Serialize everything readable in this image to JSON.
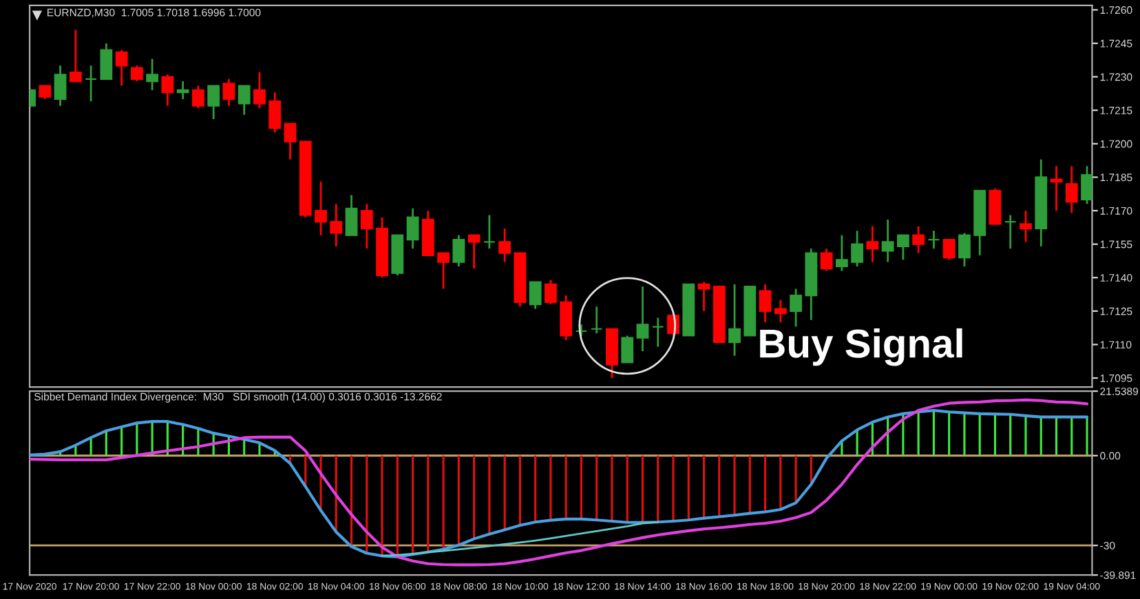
{
  "chart_data": [
    {
      "type": "candlestick",
      "title": "EURNZD,M30  1.7005 1.7018 1.6996 1.7000",
      "annotations": [
        "Buy Signal"
      ],
      "tick_labels": "y",
      "x": [
        "2020-11-17T18:00",
        "2020-11-17T18:30",
        "2020-11-17T19:00",
        "2020-11-17T19:30",
        "2020-11-17T20:00",
        "2020-11-17T20:30",
        "2020-11-17T21:00",
        "2020-11-17T21:30",
        "2020-11-17T22:00",
        "2020-11-17T22:30",
        "2020-11-17T23:00",
        "2020-11-17T23:30",
        "2020-11-18T00:00",
        "2020-11-18T00:30",
        "2020-11-18T01:00",
        "2020-11-18T01:30",
        "2020-11-18T02:00",
        "2020-11-18T02:30",
        "2020-11-18T03:00",
        "2020-11-18T03:30",
        "2020-11-18T04:00",
        "2020-11-18T04:30",
        "2020-11-18T05:00",
        "2020-11-18T05:30",
        "2020-11-18T06:00",
        "2020-11-18T06:30",
        "2020-11-18T07:00",
        "2020-11-18T07:30",
        "2020-11-18T08:00",
        "2020-11-18T08:30",
        "2020-11-18T09:00",
        "2020-11-18T09:30",
        "2020-11-18T10:00",
        "2020-11-18T10:30",
        "2020-11-18T11:00",
        "2020-11-18T11:30",
        "2020-11-18T12:00",
        "2020-11-18T12:30",
        "2020-11-18T13:00",
        "2020-11-18T13:30",
        "2020-11-18T14:00",
        "2020-11-18T14:30",
        "2020-11-18T15:00",
        "2020-11-18T15:30",
        "2020-11-18T16:00",
        "2020-11-18T16:30",
        "2020-11-18T17:00",
        "2020-11-18T17:30",
        "2020-11-18T18:00",
        "2020-11-18T18:30",
        "2020-11-18T19:00",
        "2020-11-18T19:30",
        "2020-11-18T20:00",
        "2020-11-18T20:30",
        "2020-11-18T21:00",
        "2020-11-18T21:30",
        "2020-11-18T22:00",
        "2020-11-18T22:30",
        "2020-11-18T23:00",
        "2020-11-18T23:30",
        "2020-11-19T00:00",
        "2020-11-19T00:30",
        "2020-11-19T01:00",
        "2020-11-19T01:30",
        "2020-11-19T02:00",
        "2020-11-19T02:30",
        "2020-11-19T03:00",
        "2020-11-19T03:30",
        "2020-11-19T04:00",
        "2020-11-19T04:30"
      ],
      "ohlc": [
        [
          1.7217,
          1.7225,
          1.7216,
          1.7224
        ],
        [
          1.7226,
          1.7226,
          1.722,
          1.7221
        ],
        [
          1.722,
          1.7235,
          1.7217,
          1.7231
        ],
        [
          1.7232,
          1.7251,
          1.7228,
          1.7228
        ],
        [
          1.7229,
          1.7235,
          1.7219,
          1.7229
        ],
        [
          1.7229,
          1.7245,
          1.7229,
          1.7242
        ],
        [
          1.7241,
          1.7242,
          1.7226,
          1.7235
        ],
        [
          1.7234,
          1.7235,
          1.7228,
          1.7229
        ],
        [
          1.7228,
          1.7238,
          1.7224,
          1.7231
        ],
        [
          1.723,
          1.7231,
          1.7217,
          1.7223
        ],
        [
          1.7223,
          1.7228,
          1.722,
          1.7224
        ],
        [
          1.7224,
          1.7226,
          1.7216,
          1.7217
        ],
        [
          1.7217,
          1.7226,
          1.7211,
          1.7226
        ],
        [
          1.7227,
          1.7229,
          1.7217,
          1.722
        ],
        [
          1.7218,
          1.7226,
          1.7213,
          1.7226
        ],
        [
          1.7224,
          1.7232,
          1.7216,
          1.7218
        ],
        [
          1.7219,
          1.7223,
          1.7205,
          1.7207
        ],
        [
          1.7209,
          1.7209,
          1.7193,
          1.7201
        ],
        [
          1.7201,
          1.7201,
          1.7167,
          1.7168
        ],
        [
          1.717,
          1.7183,
          1.7159,
          1.7165
        ],
        [
          1.7165,
          1.7173,
          1.7154,
          1.716
        ],
        [
          1.7159,
          1.7177,
          1.7159,
          1.7171
        ],
        [
          1.717,
          1.7173,
          1.7153,
          1.7162
        ],
        [
          1.7162,
          1.7167,
          1.714,
          1.7141
        ],
        [
          1.7142,
          1.7159,
          1.7141,
          1.7159
        ],
        [
          1.7157,
          1.7171,
          1.7153,
          1.7167
        ],
        [
          1.7166,
          1.717,
          1.715,
          1.715
        ],
        [
          1.7151,
          1.7151,
          1.7135,
          1.7147
        ],
        [
          1.7147,
          1.7159,
          1.7145,
          1.7157
        ],
        [
          1.7159,
          1.7159,
          1.7144,
          1.7156
        ],
        [
          1.7156,
          1.7168,
          1.7153,
          1.7156
        ],
        [
          1.7156,
          1.7162,
          1.7147,
          1.7151
        ],
        [
          1.7151,
          1.7151,
          1.7127,
          1.7129
        ],
        [
          1.7128,
          1.7138,
          1.7126,
          1.7138
        ],
        [
          1.7137,
          1.7139,
          1.7128,
          1.7129
        ],
        [
          1.7129,
          1.7132,
          1.7112,
          1.7114
        ],
        [
          1.7116,
          1.7119,
          1.7114,
          1.7116
        ],
        [
          1.7117,
          1.7127,
          1.7115,
          1.7117
        ],
        [
          1.7117,
          1.7117,
          1.7095,
          1.7101
        ],
        [
          1.7102,
          1.7114,
          1.7102,
          1.7113
        ],
        [
          1.7113,
          1.7136,
          1.7107,
          1.7119
        ],
        [
          1.7118,
          1.7122,
          1.7109,
          1.7118
        ],
        [
          1.7123,
          1.7124,
          1.7114,
          1.7115
        ],
        [
          1.7114,
          1.7137,
          1.7114,
          1.7137
        ],
        [
          1.7137,
          1.7138,
          1.7125,
          1.7135
        ],
        [
          1.7136,
          1.7136,
          1.7111,
          1.7111
        ],
        [
          1.7111,
          1.7137,
          1.7105,
          1.7117
        ],
        [
          1.7114,
          1.7136,
          1.7114,
          1.7136
        ],
        [
          1.7134,
          1.7137,
          1.712,
          1.7125
        ],
        [
          1.7126,
          1.713,
          1.712,
          1.7124
        ],
        [
          1.7125,
          1.7135,
          1.7118,
          1.7132
        ],
        [
          1.7132,
          1.7153,
          1.7121,
          1.7151
        ],
        [
          1.7151,
          1.7153,
          1.7143,
          1.7144
        ],
        [
          1.7145,
          1.7159,
          1.7143,
          1.7148
        ],
        [
          1.7147,
          1.7161,
          1.7145,
          1.7155
        ],
        [
          1.7156,
          1.7163,
          1.7147,
          1.7153
        ],
        [
          1.7152,
          1.7166,
          1.7147,
          1.7156
        ],
        [
          1.7154,
          1.7159,
          1.7148,
          1.7159
        ],
        [
          1.7159,
          1.7163,
          1.7151,
          1.7155
        ],
        [
          1.7157,
          1.7161,
          1.7153,
          1.7157
        ],
        [
          1.7157,
          1.7157,
          1.7148,
          1.7149
        ],
        [
          1.7149,
          1.716,
          1.7145,
          1.7159
        ],
        [
          1.7159,
          1.7179,
          1.715,
          1.7179
        ],
        [
          1.7179,
          1.718,
          1.7164,
          1.7164
        ],
        [
          1.7165,
          1.7168,
          1.7153,
          1.7165
        ],
        [
          1.7164,
          1.717,
          1.7156,
          1.7162
        ],
        [
          1.7162,
          1.7193,
          1.7154,
          1.7185
        ],
        [
          1.7184,
          1.719,
          1.717,
          1.7183
        ],
        [
          1.7182,
          1.719,
          1.7169,
          1.7174
        ],
        [
          1.7175,
          1.719,
          1.7173,
          1.7186
        ]
      ],
      "colors": [
        "#2f9e3a",
        "#ff0000",
        "#2f9e3a",
        "#ff0000",
        "#2f9e3a",
        "#2f9e3a",
        "#ff0000",
        "#ff0000",
        "#2f9e3a",
        "#ff0000",
        "#2f9e3a",
        "#ff0000",
        "#2f9e3a",
        "#ff0000",
        "#2f9e3a",
        "#ff0000",
        "#ff0000",
        "#ff0000",
        "#ff0000",
        "#ff0000",
        "#ff0000",
        "#2f9e3a",
        "#ff0000",
        "#ff0000",
        "#2f9e3a",
        "#2f9e3a",
        "#ff0000",
        "#ff0000",
        "#2f9e3a",
        "#ff0000",
        "#2f9e3a",
        "#ff0000",
        "#ff0000",
        "#2f9e3a",
        "#ff0000",
        "#ff0000",
        "#2f9e3a",
        "#2f9e3a",
        "#ff0000",
        "#2f9e3a",
        "#2f9e3a",
        "#2f9e3a",
        "#ff0000",
        "#2f9e3a",
        "#ff0000",
        "#ff0000",
        "#2f9e3a",
        "#2f9e3a",
        "#ff0000",
        "#ff0000",
        "#2f9e3a",
        "#2f9e3a",
        "#ff0000",
        "#2f9e3a",
        "#2f9e3a",
        "#ff0000",
        "#2f9e3a",
        "#2f9e3a",
        "#ff0000",
        "#2f9e3a",
        "#ff0000",
        "#2f9e3a",
        "#2f9e3a",
        "#ff0000",
        "#2f9e3a",
        "#ff0000",
        "#2f9e3a",
        "#ff0000",
        "#ff0000",
        "#2f9e3a"
      ],
      "xlim": [
        "2020-11-17T18:00",
        "2020-11-19T04:40"
      ],
      "ylim": [
        1.7091,
        1.7262
      ],
      "yticks": [
        1.7095,
        {
          "value": 1.711,
          "label": "1.7110"
        },
        1.7125,
        {
          "value": 1.714,
          "label": "1.7140"
        },
        1.7155,
        {
          "value": 1.717,
          "label": "1.7170"
        },
        1.7185,
        {
          "value": 1.72,
          "label": "1.7200"
        },
        1.7215,
        {
          "value": 1.723,
          "label": "1.7230"
        },
        1.7245,
        {
          "value": 1.726,
          "label": "1.7260"
        }
      ]
    },
    {
      "type": "bar",
      "title": "Sibbet Demand Index Divergence:  M30   SDI smooth (14.00) 0.3016 0.3016 -13.2662",
      "x": [
        "2020-11-17T18:00",
        "2020-11-17T18:30",
        "2020-11-17T19:00",
        "2020-11-17T19:30",
        "2020-11-17T20:00",
        "2020-11-17T20:30",
        "2020-11-17T21:00",
        "2020-11-17T21:30",
        "2020-11-17T22:00",
        "2020-11-17T22:30",
        "2020-11-17T23:00",
        "2020-11-17T23:30",
        "2020-11-18T00:00",
        "2020-11-18T00:30",
        "2020-11-18T01:00",
        "2020-11-18T01:30",
        "2020-11-18T02:00",
        "2020-11-18T02:30",
        "2020-11-18T03:00",
        "2020-11-18T03:30",
        "2020-11-18T04:00",
        "2020-11-18T04:30",
        "2020-11-18T05:00",
        "2020-11-18T05:30",
        "2020-11-18T06:00",
        "2020-11-18T06:30",
        "2020-11-18T07:00",
        "2020-11-18T07:30",
        "2020-11-18T08:00",
        "2020-11-18T08:30",
        "2020-11-18T09:00",
        "2020-11-18T09:30",
        "2020-11-18T10:00",
        "2020-11-18T10:30",
        "2020-11-18T11:00",
        "2020-11-18T11:30",
        "2020-11-18T12:00",
        "2020-11-18T12:30",
        "2020-11-18T13:00",
        "2020-11-18T13:30",
        "2020-11-18T14:00",
        "2020-11-18T14:30",
        "2020-11-18T15:00",
        "2020-11-18T15:30",
        "2020-11-18T16:00",
        "2020-11-18T16:30",
        "2020-11-18T17:00",
        "2020-11-18T17:30",
        "2020-11-18T18:00",
        "2020-11-18T18:30",
        "2020-11-18T19:00",
        "2020-11-18T19:30",
        "2020-11-18T20:00",
        "2020-11-18T20:30",
        "2020-11-18T21:00",
        "2020-11-18T21:30",
        "2020-11-18T22:00",
        "2020-11-18T22:30",
        "2020-11-18T23:00",
        "2020-11-18T23:30",
        "2020-11-19T00:00",
        "2020-11-19T00:30",
        "2020-11-19T01:00",
        "2020-11-19T01:30",
        "2020-11-19T02:00",
        "2020-11-19T02:30",
        "2020-11-19T03:00",
        "2020-11-19T03:30",
        "2020-11-19T04:00",
        "2020-11-19T04:30"
      ],
      "series": [
        {
          "type": "bar",
          "values": [
            0.2,
            null,
            1.3,
            3.5,
            6,
            8.3,
            9.6,
            10.9,
            11.4,
            11.4,
            10.4,
            9.1,
            7.5,
            6.5,
            5.4,
            4.3,
            1.7,
            -2.6,
            -10.3,
            -18.3,
            -25.5,
            -30.4,
            -32.6,
            -33.5,
            -33.8,
            -33,
            -32.2,
            -31.3,
            -29.9,
            -27.8,
            -26.2,
            -24.8,
            -23.3,
            -22.2,
            -21.6,
            -21.2,
            -21.2,
            -21.5,
            -21.9,
            -22.3,
            -22.3,
            -22.2,
            -21.9,
            -21.5,
            -20.9,
            -20.4,
            -19.9,
            -19.3,
            -18.8,
            -18,
            -15.8,
            -9.6,
            null,
            4.9,
            8.6,
            11.2,
            12.9,
            14,
            14.6,
            15.1,
            14.6,
            14.3,
            14,
            13.9,
            13.8,
            13.3,
            12.9,
            12.9,
            12.9,
            12.9
          ],
          "colors": [
            "#3ee83e",
            "#3ee83e",
            "#3ee83e",
            "#3ee83e",
            "#3ee83e",
            "#3ee83e",
            "#3ee83e",
            "#3ee83e",
            "#3ee83e",
            "#3ee83e",
            "#3ee83e",
            "#3ee83e",
            "#3ee83e",
            "#3ee83e",
            "#3ee83e",
            "#3ee83e",
            "#3ee83e",
            "#e01010",
            "#e01010",
            "#e01010",
            "#e01010",
            "#e01010",
            "#e01010",
            "#e01010",
            "#e01010",
            "#e01010",
            "#e01010",
            "#e01010",
            "#e01010",
            "#e01010",
            "#e01010",
            "#e01010",
            "#e01010",
            "#e01010",
            "#e01010",
            "#e01010",
            "#e01010",
            "#e01010",
            "#e01010",
            "#e01010",
            "#e01010",
            "#e01010",
            "#e01010",
            "#e01010",
            "#e01010",
            "#e01010",
            "#e01010",
            "#e01010",
            "#e01010",
            "#e01010",
            "#e01010",
            "#e01010",
            "#e01010",
            "#3ee83e",
            "#3ee83e",
            "#3ee83e",
            "#3ee83e",
            "#3ee83e",
            "#3ee83e",
            "#3ee83e",
            "#3ee83e",
            "#3ee83e",
            "#3ee83e",
            "#3ee83e",
            "#3ee83e",
            "#3ee83e",
            "#3ee83e",
            "#3ee83e",
            "#3ee83e",
            "#3ee83e"
          ]
        },
        {
          "type": "line",
          "color": "#5fc8c8",
          "values": [
            null,
            null,
            null,
            null,
            null,
            null,
            null,
            null,
            null,
            null,
            null,
            null,
            null,
            null,
            null,
            null,
            null,
            null,
            null,
            null,
            null,
            null,
            null,
            -33.5,
            -33.2,
            -32.8,
            -32.3,
            -31.8,
            -31.3,
            -30.8,
            -30.2,
            -29.6,
            -29.0,
            -28.4,
            -27.6,
            -26.8,
            -26.0,
            -25.2,
            -24.4,
            -23.6,
            -22.6,
            -22.2,
            null,
            null,
            null,
            null,
            null,
            null,
            null,
            null,
            null,
            null,
            null,
            null,
            null,
            null,
            null,
            null,
            null,
            null,
            null,
            null,
            null,
            null,
            null,
            null,
            null,
            null,
            null,
            null
          ]
        },
        {
          "type": "line",
          "color": "#4a9fe0",
          "values": [
            0.2,
            0.5,
            1.3,
            3.5,
            6,
            8.3,
            9.6,
            10.9,
            11.4,
            11.4,
            10.4,
            9.1,
            7.5,
            6.5,
            5.4,
            4.3,
            1.7,
            -2.6,
            -10.3,
            -18.3,
            -25.5,
            -30.4,
            -32.6,
            -33.5,
            -33.8,
            -33,
            -32.2,
            -31.3,
            -29.9,
            -27.8,
            -26.2,
            -24.8,
            -23.3,
            -22.2,
            -21.6,
            -21.2,
            -21.2,
            -21.5,
            -21.9,
            -22.3,
            -22.3,
            -22.2,
            -21.9,
            -21.5,
            -20.9,
            -20.4,
            -19.9,
            -19.3,
            -18.8,
            -18,
            -15.8,
            -9.6,
            -0.9,
            4.9,
            8.6,
            11.2,
            12.9,
            14,
            14.6,
            15.1,
            14.6,
            14.3,
            14,
            13.9,
            13.8,
            13.3,
            12.9,
            12.9,
            12.9,
            12.9
          ]
        },
        {
          "type": "line",
          "color": "#e040e0",
          "values": [
            -1.2,
            -1.3,
            -1.4,
            -1.4,
            -1.4,
            -1.4,
            -0.7,
            0.1,
            0.9,
            1.6,
            2.3,
            3,
            4,
            4.9,
            6,
            6.2,
            6.2,
            6.2,
            1.6,
            -6,
            -13.2,
            -19.7,
            -25.5,
            -30.6,
            -33.8,
            -35.2,
            -36.1,
            -36.4,
            -36.5,
            -36.5,
            -36.4,
            -36.1,
            -35.4,
            -34.5,
            -33.5,
            -32.5,
            -31.7,
            -30.6,
            -29.4,
            -28.4,
            -27.4,
            -26.5,
            -25.8,
            -25.1,
            -24.5,
            -24.1,
            -23.6,
            -23,
            -22.6,
            -21.9,
            -20.7,
            -19,
            -14.9,
            -9.6,
            -3,
            2.8,
            7.8,
            12.2,
            15.1,
            16.5,
            17.5,
            17.8,
            17.9,
            18.3,
            18.4,
            18.6,
            18.4,
            17.9,
            17.8,
            17.3
          ]
        }
      ],
      "ref_lines": [
        {
          "axis": "y",
          "value": 0,
          "color": "#c8a46e"
        },
        {
          "axis": "y",
          "value": -30,
          "color": "#c8a46e"
        }
      ],
      "xlim": [
        "2020-11-17T18:00",
        "2020-11-19T04:40"
      ],
      "ylim": [
        -39.891,
        21.5389
      ],
      "xticks": [
        {
          "value": "2020-11-17T18:00",
          "label": "17 Nov 2020"
        },
        {
          "value": "2020-11-17T20:00",
          "label": "17 Nov 20:00"
        },
        {
          "value": "2020-11-17T22:00",
          "label": "17 Nov 22:00"
        },
        {
          "value": "2020-11-18T00:00",
          "label": "18 Nov 00:00"
        },
        {
          "value": "2020-11-18T02:00",
          "label": "18 Nov 02:00"
        },
        {
          "value": "2020-11-18T04:00",
          "label": "18 Nov 04:00"
        },
        {
          "value": "2020-11-18T06:00",
          "label": "18 Nov 06:00"
        },
        {
          "value": "2020-11-18T08:00",
          "label": "18 Nov 08:00"
        },
        {
          "value": "2020-11-18T10:00",
          "label": "18 Nov 10:00"
        },
        {
          "value": "2020-11-18T12:00",
          "label": "18 Nov 12:00"
        },
        {
          "value": "2020-11-18T14:00",
          "label": "18 Nov 14:00"
        },
        {
          "value": "2020-11-18T16:00",
          "label": "18 Nov 16:00"
        },
        {
          "value": "2020-11-18T18:00",
          "label": "18 Nov 18:00"
        },
        {
          "value": "2020-11-18T20:00",
          "label": "18 Nov 20:00"
        },
        {
          "value": "2020-11-18T22:00",
          "label": "18 Nov 22:00"
        },
        {
          "value": "2020-11-19T00:00",
          "label": "19 Nov 00:00"
        },
        {
          "value": "2020-11-19T02:00",
          "label": "19 Nov 02:00"
        },
        {
          "value": "2020-11-19T04:00",
          "label": "19 Nov 04:00"
        }
      ],
      "yticks": [
        21.5389,
        {
          "value": 0,
          "label": "0.00"
        },
        -30,
        -39.891
      ]
    }
  ]
}
